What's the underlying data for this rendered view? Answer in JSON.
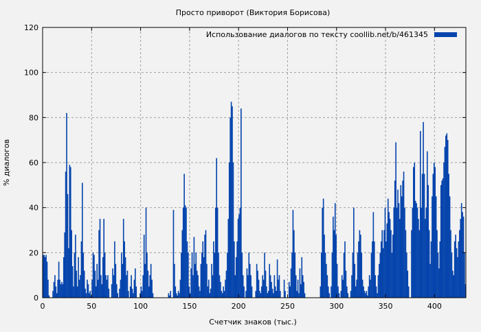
{
  "chart_data": {
    "type": "bar",
    "title": "Просто приворот (Виктория Борисова)",
    "xlabel": "Счетчик знаков (тыс.)",
    "ylabel": "% диалогов",
    "xlim": [
      0,
      432
    ],
    "ylim": [
      0,
      120
    ],
    "xticks": [
      0,
      50,
      100,
      150,
      200,
      250,
      300,
      350,
      400
    ],
    "yticks": [
      0,
      20,
      40,
      60,
      80,
      100,
      120
    ],
    "grid": true,
    "legend_position": "top-right",
    "series": [
      {
        "name": "Использование диалогов по тексту  coollib.net/b/461345",
        "color": "#0645ad",
        "x_start": 0,
        "x_step": 1,
        "values": [
          19,
          19,
          18,
          19,
          16,
          8,
          1,
          0,
          0,
          0,
          3,
          7,
          10,
          5,
          2,
          8,
          16,
          8,
          6,
          7,
          6,
          18,
          29,
          56,
          82,
          46,
          22,
          59,
          58,
          30,
          14,
          5,
          20,
          28,
          12,
          5,
          18,
          8,
          10,
          25,
          51,
          20,
          12,
          4,
          2,
          8,
          6,
          2,
          3,
          1,
          8,
          20,
          19,
          12,
          5,
          15,
          8,
          30,
          35,
          10,
          6,
          18,
          35,
          20,
          10,
          8,
          10,
          4,
          0,
          0,
          6,
          13,
          10,
          25,
          15,
          6,
          2,
          0,
          4,
          8,
          20,
          15,
          35,
          25,
          18,
          10,
          12,
          3,
          0,
          5,
          10,
          4,
          2,
          8,
          13,
          5,
          0,
          0,
          0,
          2,
          5,
          3,
          10,
          28,
          15,
          40,
          20,
          12,
          5,
          10,
          15,
          8,
          2,
          0,
          0,
          0,
          0,
          0,
          0,
          0,
          0,
          0,
          0,
          0,
          0,
          0,
          0,
          0,
          2,
          1,
          3,
          0,
          0,
          39,
          15,
          5,
          2,
          1,
          3,
          2,
          8,
          20,
          30,
          40,
          55,
          41,
          40,
          25,
          20,
          5,
          2,
          13,
          20,
          10,
          27,
          15,
          20,
          12,
          10,
          5,
          3,
          15,
          20,
          25,
          18,
          28,
          30,
          15,
          5,
          8,
          2,
          4,
          15,
          10,
          25,
          20,
          40,
          62,
          40,
          20,
          10,
          7,
          3,
          2,
          5,
          3,
          8,
          12,
          20,
          35,
          60,
          80,
          87,
          85,
          60,
          25,
          10,
          18,
          25,
          35,
          37,
          40,
          84,
          20,
          10,
          5,
          0,
          3,
          13,
          10,
          20,
          15,
          10,
          5,
          0,
          0,
          0,
          3,
          15,
          12,
          8,
          3,
          2,
          5,
          10,
          8,
          20,
          12,
          5,
          2,
          3,
          15,
          10,
          7,
          4,
          2,
          10,
          5,
          3,
          17,
          8,
          10,
          3,
          0,
          0,
          0,
          8,
          3,
          0,
          0,
          0,
          7,
          5,
          13,
          20,
          39,
          30,
          20,
          10,
          3,
          8,
          2,
          13,
          6,
          18,
          10,
          7,
          2,
          0,
          0,
          0,
          0,
          0,
          0,
          0,
          0,
          0,
          0,
          0,
          0,
          0,
          0,
          0,
          5,
          20,
          40,
          44,
          28,
          20,
          15,
          10,
          5,
          2,
          0,
          5,
          20,
          36,
          30,
          42,
          28,
          15,
          5,
          2,
          0,
          3,
          10,
          8,
          20,
          25,
          12,
          5,
          2,
          0,
          0,
          3,
          10,
          20,
          40,
          15,
          5,
          8,
          20,
          25,
          30,
          28,
          20,
          8,
          5,
          3,
          2,
          3,
          1,
          5,
          10,
          8,
          20,
          25,
          38,
          25,
          10,
          5,
          2,
          10,
          15,
          20,
          25,
          30,
          22,
          30,
          40,
          25,
          33,
          44,
          38,
          35,
          30,
          20,
          28,
          40,
          52,
          69,
          40,
          48,
          42,
          35,
          50,
          45,
          52,
          56,
          40,
          30,
          20,
          12,
          5,
          0,
          0,
          30,
          40,
          58,
          60,
          43,
          42,
          40,
          35,
          30,
          74,
          40,
          55,
          78,
          55,
          35,
          40,
          65,
          50,
          30,
          15,
          25,
          45,
          55,
          60,
          58,
          45,
          30,
          20,
          13,
          25,
          50,
          52,
          53,
          60,
          67,
          72,
          73,
          70,
          55,
          45,
          30,
          20,
          12,
          10,
          25,
          28,
          22,
          18,
          25,
          30,
          35,
          42,
          38,
          36,
          20,
          6
        ]
      }
    ]
  }
}
